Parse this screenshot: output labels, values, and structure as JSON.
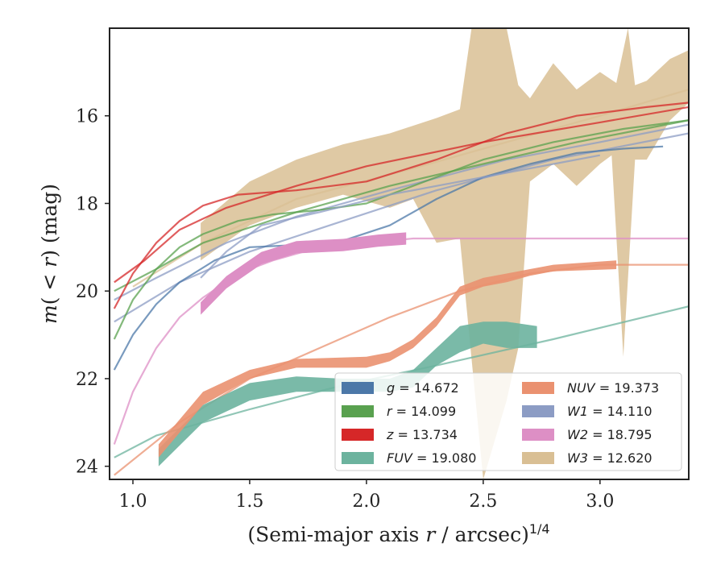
{
  "chart_data": {
    "type": "line",
    "xlabel": "(Semi-major axis r / arcsec)^1/4",
    "ylabel": "m(< r) (mag)",
    "xlim": [
      0.9,
      3.38
    ],
    "ylim": [
      24.3,
      14.0
    ],
    "y_inverted": true,
    "grid": false,
    "legend_position": "lower-right",
    "x_ticks": [
      "1.0",
      "1.5",
      "2.0",
      "2.5",
      "3.0"
    ],
    "x_tick_values": [
      1.0,
      1.5,
      2.0,
      2.5,
      3.0
    ],
    "y_ticks": [
      "16",
      "18",
      "20",
      "22",
      "24"
    ],
    "y_tick_values": [
      16,
      18,
      20,
      22,
      24
    ],
    "legend": [
      {
        "label": "g = 14.672",
        "color": "#4c78a8"
      },
      {
        "label": "r = 14.099",
        "color": "#59a14f"
      },
      {
        "label": "z = 13.734",
        "color": "#d62728"
      },
      {
        "label": "FUV = 19.080",
        "color": "#6cb39e"
      },
      {
        "label": "NUV = 19.373",
        "color": "#ea9170"
      },
      {
        "label": "W1 = 14.110",
        "color": "#8c9cc4"
      },
      {
        "label": "W2 = 18.795",
        "color": "#dd8fc5"
      },
      {
        "label": "W3 = 12.620",
        "color": "#d9bf94"
      }
    ],
    "series": [
      {
        "band": "W3",
        "color": "#d9bf94",
        "upper": [
          [
            1.29,
            18.45
          ],
          [
            1.5,
            17.5
          ],
          [
            1.7,
            17.0
          ],
          [
            1.9,
            16.65
          ],
          [
            2.1,
            16.4
          ],
          [
            2.3,
            16.05
          ],
          [
            2.4,
            15.85
          ],
          [
            2.45,
            14.0
          ],
          [
            2.6,
            14.0
          ],
          [
            2.65,
            15.3
          ],
          [
            2.7,
            15.6
          ],
          [
            2.8,
            14.8
          ],
          [
            2.9,
            15.4
          ],
          [
            3.0,
            15.0
          ],
          [
            3.07,
            15.25
          ],
          [
            3.12,
            14.0
          ],
          [
            3.15,
            15.3
          ],
          [
            3.2,
            15.2
          ],
          [
            3.3,
            14.7
          ],
          [
            3.38,
            14.5
          ]
        ],
        "lower": [
          [
            1.29,
            19.3
          ],
          [
            1.5,
            18.5
          ],
          [
            1.7,
            18.1
          ],
          [
            1.9,
            17.8
          ],
          [
            2.1,
            18.1
          ],
          [
            2.2,
            17.9
          ],
          [
            2.3,
            18.9
          ],
          [
            2.4,
            18.8
          ],
          [
            2.5,
            24.3
          ],
          [
            2.6,
            22.5
          ],
          [
            2.65,
            21.3
          ],
          [
            2.7,
            17.5
          ],
          [
            2.8,
            17.1
          ],
          [
            2.9,
            17.6
          ],
          [
            3.0,
            17.1
          ],
          [
            3.05,
            16.9
          ],
          [
            3.1,
            21.5
          ],
          [
            3.15,
            17.0
          ],
          [
            3.2,
            17.0
          ],
          [
            3.3,
            16.1
          ],
          [
            3.38,
            15.7
          ]
        ]
      },
      {
        "band": "W3",
        "color": "#d9bf94",
        "line": [
          [
            1.0,
            19.9
          ],
          [
            1.3,
            18.9
          ],
          [
            1.7,
            17.9
          ],
          [
            2.2,
            17.2
          ],
          [
            2.6,
            16.6
          ],
          [
            3.0,
            16.0
          ],
          [
            3.38,
            15.4
          ]
        ]
      },
      {
        "band": "W2",
        "color": "#dd8fc5",
        "line": [
          [
            0.92,
            23.5
          ],
          [
            1.0,
            22.3
          ],
          [
            1.1,
            21.3
          ],
          [
            1.2,
            20.6
          ],
          [
            1.3,
            20.15
          ],
          [
            1.45,
            19.6
          ],
          [
            1.6,
            19.3
          ],
          [
            1.8,
            19.0
          ],
          [
            2.2,
            18.8
          ],
          [
            3.38,
            18.8
          ]
        ]
      },
      {
        "band": "W1",
        "color": "#8c9cc4",
        "line": [
          [
            0.92,
            20.7
          ],
          [
            1.2,
            19.8
          ],
          [
            1.5,
            19.1
          ],
          [
            1.9,
            18.4
          ],
          [
            2.3,
            17.7
          ],
          [
            2.8,
            17.0
          ],
          [
            3.38,
            16.4
          ]
        ]
      },
      {
        "band": "W1",
        "color": "#8c9cc4",
        "line": [
          [
            0.92,
            20.2
          ],
          [
            1.1,
            19.7
          ],
          [
            1.4,
            18.9
          ],
          [
            1.7,
            18.3
          ],
          [
            2.1,
            17.7
          ],
          [
            2.6,
            17.0
          ],
          [
            3.0,
            16.6
          ],
          [
            3.38,
            16.2
          ]
        ]
      },
      {
        "band": "r",
        "color": "#59a14f",
        "line": [
          [
            0.92,
            20.0
          ],
          [
            1.1,
            19.5
          ],
          [
            1.3,
            18.9
          ],
          [
            1.7,
            18.2
          ],
          [
            2.1,
            17.6
          ],
          [
            2.5,
            17.1
          ],
          [
            2.9,
            16.6
          ],
          [
            3.38,
            16.1
          ]
        ]
      },
      {
        "band": "z",
        "color": "#d62728",
        "line": [
          [
            0.92,
            19.8
          ],
          [
            1.05,
            19.3
          ],
          [
            1.2,
            18.6
          ],
          [
            1.4,
            18.1
          ],
          [
            1.7,
            17.6
          ],
          [
            2.0,
            17.15
          ],
          [
            2.5,
            16.6
          ],
          [
            3.0,
            16.15
          ],
          [
            3.38,
            15.8
          ]
        ]
      },
      {
        "band": "FUV",
        "color": "#6cb39e",
        "line": [
          [
            0.92,
            23.8
          ],
          [
            1.1,
            23.3
          ],
          [
            1.5,
            22.7
          ],
          [
            1.9,
            22.15
          ],
          [
            2.3,
            21.7
          ],
          [
            2.8,
            21.1
          ],
          [
            3.38,
            20.35
          ]
        ]
      },
      {
        "band": "NUV",
        "color": "#ea9170",
        "line": [
          [
            0.92,
            24.2
          ],
          [
            1.2,
            23.0
          ],
          [
            1.5,
            22.0
          ],
          [
            1.8,
            21.3
          ],
          [
            2.1,
            20.6
          ],
          [
            2.4,
            20.0
          ],
          [
            2.7,
            19.6
          ],
          [
            3.0,
            19.4
          ],
          [
            3.38,
            19.4
          ]
        ]
      },
      {
        "band": "g",
        "color": "#4c78a8",
        "line": [
          [
            0.92,
            21.8
          ],
          [
            1.0,
            21.0
          ],
          [
            1.1,
            20.3
          ],
          [
            1.2,
            19.8
          ],
          [
            1.35,
            19.3
          ],
          [
            1.5,
            19.0
          ],
          [
            1.7,
            18.95
          ],
          [
            1.9,
            18.85
          ],
          [
            2.1,
            18.5
          ],
          [
            2.3,
            17.9
          ],
          [
            2.5,
            17.4
          ],
          [
            2.7,
            17.1
          ],
          [
            2.9,
            16.85
          ],
          [
            3.1,
            16.75
          ],
          [
            3.27,
            16.7
          ]
        ]
      },
      {
        "band": "r",
        "color": "#59a14f",
        "line": [
          [
            0.92,
            21.1
          ],
          [
            1.0,
            20.2
          ],
          [
            1.1,
            19.5
          ],
          [
            1.2,
            19.0
          ],
          [
            1.3,
            18.7
          ],
          [
            1.45,
            18.4
          ],
          [
            1.6,
            18.25
          ],
          [
            1.8,
            18.15
          ],
          [
            2.0,
            18.0
          ],
          [
            2.2,
            17.6
          ],
          [
            2.5,
            17.0
          ],
          [
            2.8,
            16.6
          ],
          [
            3.1,
            16.3
          ],
          [
            3.38,
            16.1
          ]
        ]
      },
      {
        "band": "z",
        "color": "#d62728",
        "line": [
          [
            0.92,
            20.4
          ],
          [
            1.0,
            19.6
          ],
          [
            1.1,
            18.9
          ],
          [
            1.2,
            18.4
          ],
          [
            1.3,
            18.05
          ],
          [
            1.45,
            17.8
          ],
          [
            1.7,
            17.7
          ],
          [
            2.0,
            17.5
          ],
          [
            2.3,
            17.0
          ],
          [
            2.6,
            16.4
          ],
          [
            2.9,
            16.0
          ],
          [
            3.2,
            15.8
          ],
          [
            3.38,
            15.7
          ]
        ]
      },
      {
        "band": "W1",
        "color": "#8c9cc4",
        "line": [
          [
            1.29,
            19.7
          ],
          [
            1.4,
            19.1
          ],
          [
            1.55,
            18.5
          ],
          [
            1.8,
            18.2
          ],
          [
            2.1,
            17.8
          ],
          [
            2.4,
            17.5
          ],
          [
            2.7,
            17.2
          ],
          [
            3.0,
            16.9
          ]
        ]
      },
      {
        "band": "W2",
        "color": "#dd8fc5",
        "width_mag": 0.28,
        "line": [
          [
            1.29,
            20.4
          ],
          [
            1.4,
            19.8
          ],
          [
            1.55,
            19.25
          ],
          [
            1.7,
            19.0
          ],
          [
            1.9,
            18.95
          ],
          [
            2.05,
            18.85
          ],
          [
            2.17,
            18.8
          ]
        ]
      },
      {
        "band": "FUV",
        "color": "#6cb39e",
        "upper": [
          [
            1.11,
            23.6
          ],
          [
            1.3,
            22.6
          ],
          [
            1.5,
            22.1
          ],
          [
            1.7,
            21.95
          ],
          [
            1.9,
            22.0
          ],
          [
            2.1,
            22.0
          ],
          [
            2.2,
            21.8
          ],
          [
            2.3,
            21.3
          ],
          [
            2.4,
            20.8
          ],
          [
            2.5,
            20.7
          ],
          [
            2.6,
            20.7
          ],
          [
            2.73,
            20.8
          ]
        ],
        "lower": [
          [
            1.11,
            24.0
          ],
          [
            1.3,
            23.0
          ],
          [
            1.5,
            22.5
          ],
          [
            1.7,
            22.3
          ],
          [
            1.9,
            22.3
          ],
          [
            2.1,
            22.3
          ],
          [
            2.2,
            22.2
          ],
          [
            2.3,
            21.7
          ],
          [
            2.4,
            21.4
          ],
          [
            2.5,
            21.2
          ],
          [
            2.6,
            21.3
          ],
          [
            2.73,
            21.3
          ]
        ]
      },
      {
        "band": "NUV",
        "color": "#ea9170",
        "upper": [
          [
            1.11,
            23.5
          ],
          [
            1.3,
            22.3
          ],
          [
            1.5,
            21.8
          ],
          [
            1.7,
            21.55
          ],
          [
            2.0,
            21.5
          ],
          [
            2.1,
            21.4
          ],
          [
            2.2,
            21.1
          ],
          [
            2.3,
            20.6
          ],
          [
            2.4,
            19.9
          ],
          [
            2.5,
            19.7
          ],
          [
            2.6,
            19.6
          ],
          [
            2.7,
            19.5
          ],
          [
            2.8,
            19.4
          ],
          [
            3.07,
            19.3
          ]
        ],
        "lower": [
          [
            1.11,
            23.8
          ],
          [
            1.3,
            22.6
          ],
          [
            1.5,
            22.0
          ],
          [
            1.7,
            21.75
          ],
          [
            2.0,
            21.75
          ],
          [
            2.1,
            21.6
          ],
          [
            2.2,
            21.3
          ],
          [
            2.3,
            20.8
          ],
          [
            2.4,
            20.1
          ],
          [
            2.5,
            19.9
          ],
          [
            2.6,
            19.8
          ],
          [
            2.7,
            19.65
          ],
          [
            2.8,
            19.55
          ],
          [
            3.07,
            19.5
          ]
        ]
      }
    ]
  }
}
